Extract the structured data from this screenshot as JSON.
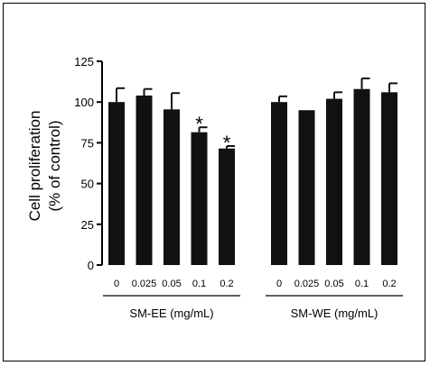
{
  "chart_data": {
    "type": "bar",
    "ylabel_line1": "Cell proliferation",
    "ylabel_line2": "(% of control)",
    "ylim": [
      0,
      125
    ],
    "yticks": [
      0,
      25,
      50,
      75,
      100,
      125
    ],
    "grid": false,
    "groups": [
      {
        "name": "SM-EE (mg/mL)",
        "categories": [
          "0",
          "0.025",
          "0.05",
          "0.1",
          "0.2"
        ],
        "values": [
          100,
          104,
          95.5,
          81.5,
          71.5
        ],
        "errors": [
          8.5,
          4,
          10,
          3,
          1.5
        ],
        "significant": [
          false,
          false,
          false,
          true,
          true
        ]
      },
      {
        "name": "SM-WE (mg/mL)",
        "categories": [
          "0",
          "0.025",
          "0.05",
          "0.1",
          "0.2"
        ],
        "values": [
          100,
          95,
          102,
          108,
          106
        ],
        "errors": [
          3.5,
          0,
          4,
          6.5,
          5.5
        ],
        "significant": [
          false,
          false,
          false,
          false,
          false
        ]
      }
    ],
    "significance_marker": "*",
    "bar_color": "#111111"
  }
}
